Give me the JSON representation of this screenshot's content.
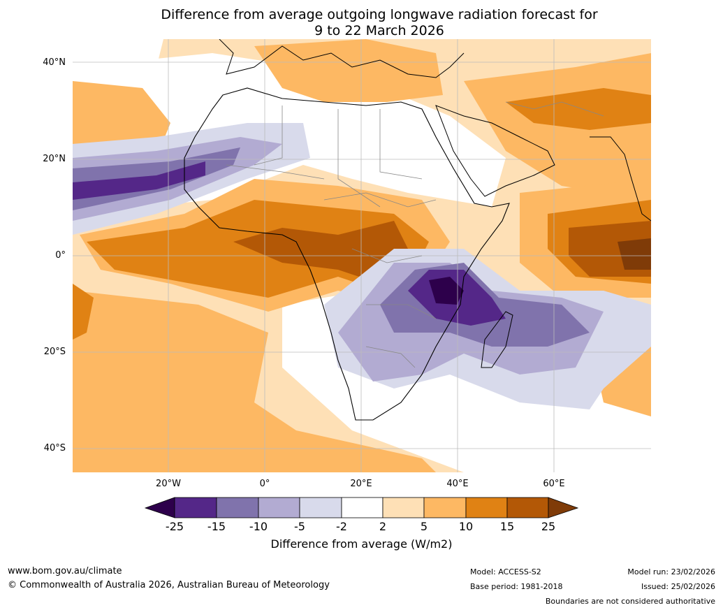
{
  "title": {
    "line1": "Difference from average outgoing longwave radiation forecast for",
    "line2": "9 to 22 March 2026"
  },
  "axes": {
    "lat_labels": [
      "40°N",
      "20°N",
      "0°",
      "20°S",
      "40°S"
    ],
    "lon_labels": [
      "20°W",
      "0°",
      "20°E",
      "40°E",
      "60°E"
    ]
  },
  "legend": {
    "ticks": [
      "-25",
      "-15",
      "-10",
      "-5",
      "-2",
      "2",
      "5",
      "10",
      "15",
      "25"
    ],
    "label": "Difference from average (W/m2)",
    "colors": [
      "#2d004b",
      "#542788",
      "#8073ac",
      "#b2abd2",
      "#d8daeb",
      "#ffffff",
      "#fee0b6",
      "#fdb863",
      "#e08214",
      "#b35806",
      "#7f3b08"
    ]
  },
  "footer": {
    "website": "www.bom.gov.au/climate",
    "copyright": "© Commonwealth of Australia 2026, Australian Bureau of Meteorology",
    "model": "Model: ACCESS-S2",
    "base_period": "Base period: 1981-2018",
    "model_run": "Model run: 23/02/2026",
    "issued": "Issued: 25/02/2026",
    "disclaimer": "Boundaries are not considered authoritative"
  }
}
